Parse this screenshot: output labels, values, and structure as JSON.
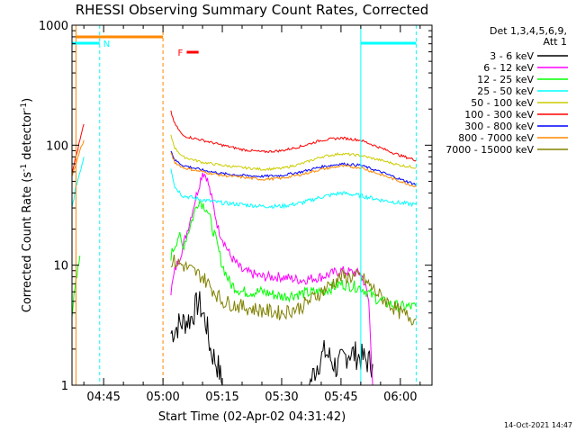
{
  "chart_data": {
    "type": "line",
    "title": "RHESSI Observing Summary Count Rates, Corrected",
    "xlabel": "Start Time (02-Apr-02 04:31:42)",
    "ylabel_prefix": "Corrected Count Rate (s",
    "ylabel_exp1": "-1",
    "ylabel_mid": " detector",
    "ylabel_exp2": "-1",
    "ylabel_suffix": ")",
    "yscale": "log",
    "ylim": [
      1,
      1000
    ],
    "xlim_minutes": [
      277,
      368
    ],
    "x_ticks": [
      {
        "label": "04:45",
        "minute": 285
      },
      {
        "label": "05:00",
        "minute": 300
      },
      {
        "label": "05:15",
        "minute": 315
      },
      {
        "label": "05:30",
        "minute": 330
      },
      {
        "label": "05:45",
        "minute": 345
      },
      {
        "label": "06:00",
        "minute": 360
      }
    ],
    "y_ticks": [
      {
        "label": "1",
        "value": 1
      },
      {
        "label": "10",
        "value": 10
      },
      {
        "label": "100",
        "value": 100
      },
      {
        "label": "1000",
        "value": 1000
      }
    ],
    "legend": {
      "header": [
        "Det 1,3,4,5,6,9,",
        "Att 1"
      ],
      "placement": "right"
    },
    "series": [
      {
        "name": "3 - 6 keV",
        "color": "#000000",
        "segments": [
          {
            "x": [
              302,
              304,
              307,
              309,
              311,
              312,
              314,
              315
            ],
            "y": [
              2.7,
              3.2,
              3.6,
              5.0,
              3.2,
              2.0,
              1.4,
              1.0
            ]
          },
          {
            "x": [
              337,
              339,
              341,
              344,
              347,
              350,
              353
            ],
            "y": [
              1.0,
              1.5,
              1.9,
              1.4,
              1.9,
              1.7,
              1.5
            ]
          }
        ],
        "noise": 0.35
      },
      {
        "name": "6 - 12 keV",
        "color": "#ff00ff",
        "segments": [
          {
            "x": [
              302,
              303,
              305,
              307,
              309,
              310,
              311,
              312,
              314,
              317,
              320,
              325,
              330,
              335,
              340,
              345,
              350,
              351,
              352,
              353
            ],
            "y": [
              6,
              9,
              14,
              25,
              45,
              60,
              55,
              40,
              20,
              12,
              9,
              8,
              8,
              7.5,
              8,
              9,
              8.5,
              7,
              5,
              1.0
            ]
          }
        ],
        "noise": 0.12
      },
      {
        "name": "12 - 25 keV",
        "color": "#00ff00",
        "segments": [
          {
            "x": [
              277,
              278,
              279
            ],
            "y": [
              4,
              7,
              12
            ]
          },
          {
            "x": [
              302,
              304,
              305,
              307,
              309,
              311,
              313,
              315,
              317,
              320,
              325,
              330,
              335,
              340,
              345,
              350,
              355,
              360,
              364
            ],
            "y": [
              12,
              18,
              14,
              22,
              35,
              30,
              18,
              10,
              7,
              6,
              6,
              5.5,
              5.8,
              6,
              7,
              6.5,
              5,
              4.5,
              4.5
            ]
          }
        ],
        "noise": 0.14
      },
      {
        "name": "25 - 50 keV",
        "color": "#00ffff",
        "segments": [
          {
            "x": [
              277,
              278,
              279,
              280
            ],
            "y": [
              30,
              45,
              60,
              80
            ]
          },
          {
            "x": [
              302,
              303,
              305,
              310,
              315,
              320,
              325,
              330,
              335,
              340,
              345,
              350,
              355,
              360,
              364
            ],
            "y": [
              65,
              45,
              38,
              35,
              33,
              32,
              31,
              31,
              33,
              37,
              40,
              38,
              35,
              33,
              32
            ]
          }
        ],
        "noise": 0.05
      },
      {
        "name": "50 - 100 keV",
        "color": "#cccc00",
        "segments": [
          {
            "x": [
              302,
              303,
              305,
              310,
              315,
              320,
              325,
              330,
              335,
              340,
              345,
              350,
              355,
              360,
              364
            ],
            "y": [
              120,
              95,
              80,
              72,
              68,
              65,
              63,
              64,
              70,
              80,
              85,
              82,
              75,
              68,
              65
            ]
          }
        ],
        "noise": 0.03
      },
      {
        "name": "100 - 300 keV",
        "color": "#ff0000",
        "segments": [
          {
            "x": [
              277,
              278,
              279,
              280
            ],
            "y": [
              60,
              80,
              110,
              150
            ]
          },
          {
            "x": [
              302,
              303,
              305,
              310,
              315,
              320,
              325,
              330,
              335,
              340,
              345,
              350,
              355,
              360,
              364
            ],
            "y": [
              190,
              150,
              120,
              110,
              100,
              92,
              88,
              90,
              98,
              110,
              115,
              110,
              95,
              82,
              75
            ]
          }
        ],
        "noise": 0.03
      },
      {
        "name": "300 - 800 keV",
        "color": "#0000ff",
        "segments": [
          {
            "x": [
              302,
              303,
              305,
              310,
              315,
              320,
              325,
              330,
              335,
              340,
              345,
              350,
              355,
              360,
              364
            ],
            "y": [
              90,
              75,
              68,
              62,
              58,
              56,
              55,
              56,
              60,
              66,
              70,
              68,
              60,
              52,
              47
            ]
          }
        ],
        "noise": 0.03
      },
      {
        "name": "800 - 7000 keV",
        "color": "#ff8800",
        "segments": [
          {
            "x": [
              277,
              278,
              279,
              280
            ],
            "y": [
              55,
              70,
              90,
              110
            ]
          },
          {
            "x": [
              302,
              303,
              305,
              310,
              315,
              320,
              325,
              330,
              335,
              340,
              345,
              350,
              355,
              360,
              364
            ],
            "y": [
              85,
              72,
              65,
              60,
              56,
              54,
              52,
              53,
              57,
              63,
              67,
              65,
              57,
              50,
              45
            ]
          }
        ],
        "noise": 0.03
      },
      {
        "name": "7000 - 15000 keV",
        "color": "#808000",
        "segments": [
          {
            "x": [
              302,
              305,
              310,
              315,
              320,
              325,
              330,
              335,
              340,
              345,
              350,
              355,
              360,
              364
            ],
            "y": [
              11,
              10,
              8,
              5,
              4.5,
              4.2,
              4,
              4.5,
              6,
              8,
              8,
              5.5,
              4,
              3.5
            ]
          }
        ],
        "noise": 0.18
      }
    ],
    "markers": {
      "cyan_verticals": [
        277,
        284,
        350,
        364
      ],
      "orange_verticals": [
        278,
        300
      ],
      "cyan_bars": [
        {
          "from": 277,
          "to": 284,
          "label": "N"
        },
        {
          "from": 350,
          "to": 364,
          "label": ""
        }
      ],
      "orange_bar": {
        "from": 278,
        "to": 300
      },
      "flare_flag": {
        "label": "F",
        "from": 306,
        "to": 309
      }
    }
  },
  "footer_timestamp": "14-Oct-2021 14:47"
}
